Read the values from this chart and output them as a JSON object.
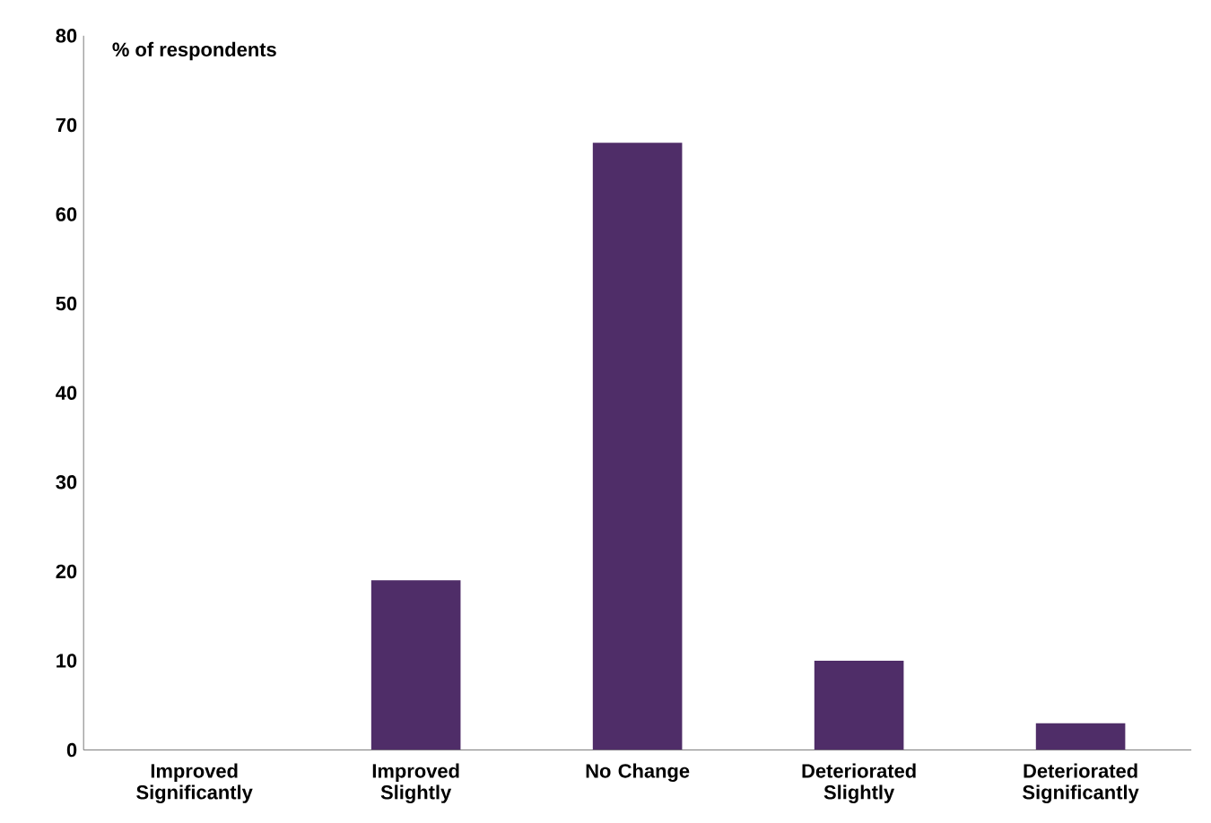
{
  "chart_data": {
    "type": "bar",
    "ylabel": "% of respondents",
    "categories": [
      "Improved Significantly",
      "Improved Slightly",
      "No Change",
      "Deteriorated Slightly",
      "Deteriorated Significantly"
    ],
    "values": [
      0,
      19,
      68,
      10,
      3
    ],
    "color": "#4f2d68",
    "ylim": [
      0,
      80
    ],
    "yticks": [
      0,
      10,
      20,
      30,
      40,
      50,
      60,
      70,
      80
    ],
    "grid": false
  }
}
